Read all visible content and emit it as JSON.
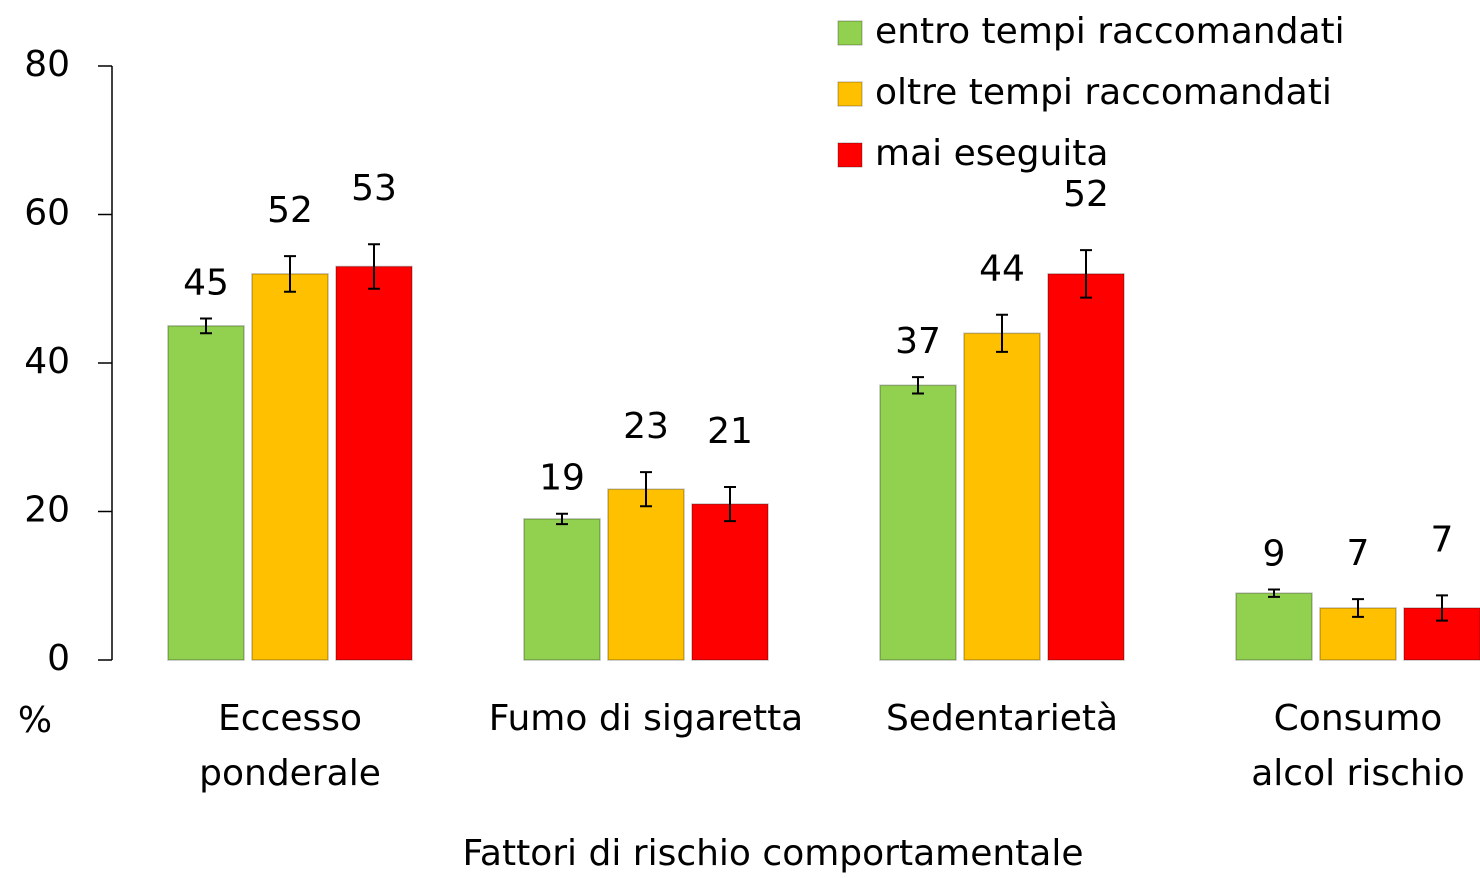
{
  "chart_data": {
    "type": "bar",
    "x_label": "Fattori di rischio comportamentale",
    "y_label": "%",
    "categories": [
      "Eccesso\nponderale",
      "Fumo di sigaretta",
      "Sedentarietà",
      "Consumo\nalcol rischio"
    ],
    "series": [
      {
        "name": "entro tempi raccomandati",
        "color": "#92d050",
        "values": [
          45,
          19,
          37,
          9
        ],
        "errors": [
          1,
          0.7,
          1.1,
          0.5
        ]
      },
      {
        "name": "oltre tempi raccomandati",
        "color": "#ffc000",
        "values": [
          52,
          23,
          44,
          7
        ],
        "errors": [
          2.4,
          2.3,
          2.5,
          1.2
        ]
      },
      {
        "name": "mai eseguita",
        "color": "#ff0000",
        "values": [
          53,
          21,
          52,
          7
        ],
        "errors": [
          3,
          2.3,
          3.2,
          1.7
        ]
      }
    ],
    "ylim": [
      0,
      80
    ],
    "yticks": [
      0,
      20,
      40,
      60,
      80
    ],
    "grid": false,
    "legend": "upper right"
  }
}
